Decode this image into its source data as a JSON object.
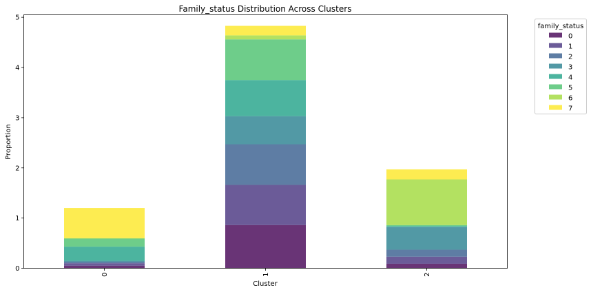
{
  "chart_data": {
    "type": "bar",
    "stacked": true,
    "title": "Family_status Distribution Across Clusters",
    "xlabel": "Cluster",
    "ylabel": "Proportion",
    "categories": [
      "0",
      "1",
      "2"
    ],
    "ylim": [
      0,
      5.05
    ],
    "yticks": [
      "0",
      "1",
      "2",
      "3",
      "4",
      "5"
    ],
    "grid": false,
    "legend": {
      "title": "family_status",
      "placement": "outside-top-right"
    },
    "series": [
      {
        "name": "0",
        "color": "#440154",
        "values": [
          0.05,
          0.86,
          0.09
        ]
      },
      {
        "name": "1",
        "color": "#46327e",
        "values": [
          0.05,
          0.8,
          0.14
        ]
      },
      {
        "name": "2",
        "color": "#365c8d",
        "values": [
          0.03,
          0.81,
          0.14
        ]
      },
      {
        "name": "3",
        "color": "#277f8e",
        "values": [
          0.02,
          0.56,
          0.45
        ]
      },
      {
        "name": "4",
        "color": "#1fa187",
        "values": [
          0.28,
          0.72,
          0.02
        ]
      },
      {
        "name": "5",
        "color": "#4ac16d",
        "values": [
          0.16,
          0.81,
          0.02
        ]
      },
      {
        "name": "6",
        "color": "#a0da39",
        "values": [
          0.01,
          0.08,
          0.91
        ]
      },
      {
        "name": "7",
        "color": "#fde725",
        "values": [
          0.6,
          0.19,
          0.2
        ]
      }
    ]
  }
}
